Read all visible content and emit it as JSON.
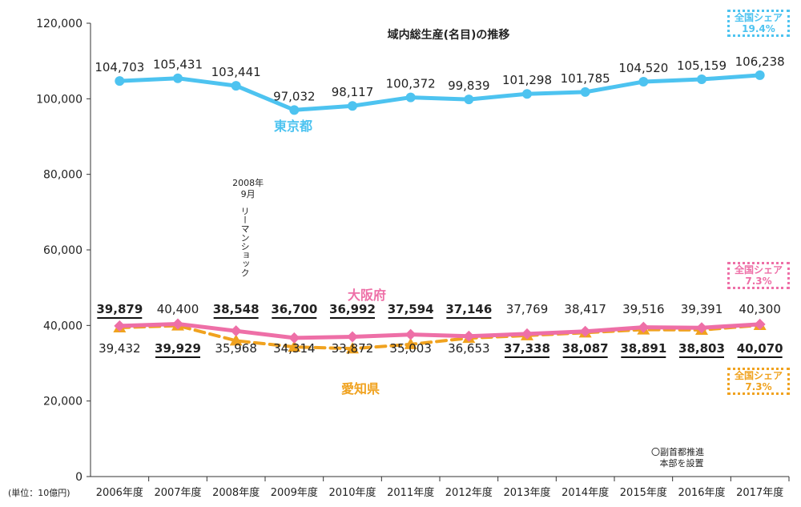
{
  "chart_data": {
    "type": "line",
    "title": "域内総生産(名目)の推移",
    "unit_label": "(単位：10億円)",
    "categories": [
      "2006年度",
      "2007年度",
      "2008年度",
      "2009年度",
      "2010年度",
      "2011年度",
      "2012年度",
      "2013年度",
      "2014年度",
      "2015年度",
      "2016年度",
      "2017年度"
    ],
    "y_ticks": [
      "0",
      "20,000",
      "40,000",
      "60,000",
      "80,000",
      "100,000",
      "120,000"
    ],
    "ylim": [
      0,
      120000
    ],
    "grid": false,
    "series": [
      {
        "name": "東京都",
        "color": "#4dc3f0",
        "marker": "circle",
        "style": "solid",
        "values": [
          104703,
          105431,
          103441,
          97032,
          98117,
          100372,
          99839,
          101298,
          101785,
          104520,
          105159,
          106238
        ],
        "labels": [
          "104,703",
          "105,431",
          "103,441",
          "97,032",
          "98,117",
          "100,372",
          "99,839",
          "101,298",
          "101,785",
          "104,520",
          "105,159",
          "106,238"
        ]
      },
      {
        "name": "大阪府",
        "color": "#ee6fa7",
        "marker": "diamond",
        "style": "solid",
        "values": [
          39879,
          40400,
          38548,
          36700,
          36992,
          37594,
          37146,
          37769,
          38417,
          39516,
          39391,
          40300
        ],
        "labels": [
          "39,879",
          "40,400",
          "38,548",
          "36,700",
          "36,992",
          "37,594",
          "37,146",
          "37,769",
          "38,417",
          "39,516",
          "39,391",
          "40,300"
        ]
      },
      {
        "name": "愛知県",
        "color": "#f0a21f",
        "marker": "triangle",
        "style": "dashed",
        "values": [
          39432,
          39929,
          35968,
          34314,
          33872,
          35003,
          36653,
          37338,
          38087,
          38891,
          38803,
          40070
        ],
        "labels": [
          "39,432",
          "39,929",
          "35,968",
          "34,314",
          "33,872",
          "35,003",
          "36,653",
          "37,338",
          "38,087",
          "38,891",
          "38,803",
          "40,070"
        ]
      }
    ],
    "annotations": {
      "lehman": [
        "2008年",
        "9月",
        "リーマンショック"
      ],
      "vice_governor": [
        "〇副首都推進",
        "本部を設置"
      ]
    },
    "share_boxes": [
      {
        "label": "全国シェア",
        "value": "19.4%",
        "color": "#4dc3f0"
      },
      {
        "label": "全国シェア",
        "value": "7.3%",
        "color": "#ee6fa7"
      },
      {
        "label": "全国シェア",
        "value": "7.3%",
        "color": "#f0a21f"
      }
    ]
  }
}
